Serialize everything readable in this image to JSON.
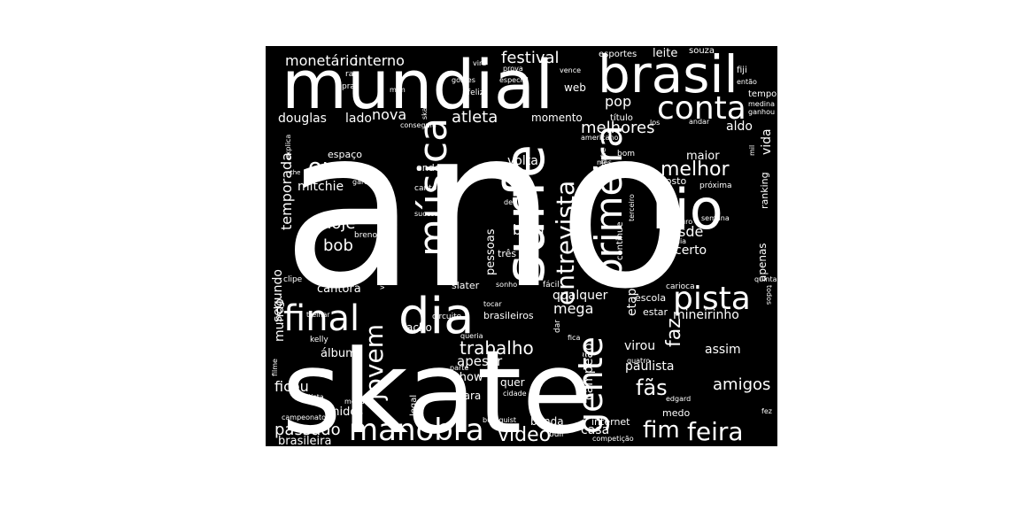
{
  "colors": {
    "page_background": "#ffffff",
    "cloud_background": "#000000",
    "text": "#ffffff"
  },
  "words": [
    "ano",
    "skate",
    "mundial",
    "brasil",
    "surfe",
    "rio",
    "dia",
    "música",
    "primeira",
    "final",
    "pista",
    "gente",
    "conta",
    "entrevista",
    "manobra",
    "jovem",
    "fim",
    "feira",
    "ouro",
    "fãs",
    "melhor",
    "amigos",
    "trabalho",
    "vídeo",
    "passado",
    "faz",
    "hoje",
    "desde",
    "bem",
    "mega",
    "bob",
    "festival",
    "monetário",
    "interno",
    "atleta",
    "nova",
    "pop",
    "melhores",
    "aldo",
    "douglas",
    "lado",
    "momento",
    "temporada",
    "segundo",
    "mitchie",
    "espaço",
    "onde",
    "vezes",
    "volta",
    "maior",
    "agosto",
    "certo",
    "apenas",
    "vida",
    "ranking",
    "mundo",
    "cantora",
    "slater",
    "pessoas",
    "três",
    "qualquer",
    "etapa",
    "mineirinho",
    "estar",
    "escola",
    "carioca",
    "acho",
    "álbum",
    "apesar",
    "show",
    "quer",
    "campeão",
    "paulista",
    "assim",
    "virou",
    "ficou",
    "unidos",
    "cara",
    "casa",
    "banda",
    "internet",
    "medo",
    "brasileira",
    "brasileiros",
    "continue",
    "terceiro",
    "próxima",
    "futuro",
    "semana",
    "família",
    "título",
    "bom",
    "americano",
    "esportes",
    "leite",
    "souza",
    "rap",
    "pra",
    "mim",
    "vira",
    "prova",
    "vence",
    "gomes",
    "especial",
    "feliz",
    "web",
    "skatista",
    "conseguiu",
    "explica",
    "the",
    "garoto",
    "cantor",
    "sucesso",
    "vai",
    "breno",
    "deu",
    "clipe",
    "você",
    "treinar",
    "kelly",
    "circuito",
    "tocar",
    "sonho",
    "fácil",
    "filme",
    "artista",
    "medalha",
    "legal",
    "campeonato",
    "burnquist",
    "bull",
    "competição",
    "edgard",
    "fez",
    "quatro",
    "parte",
    "queria",
    "cidade",
    "fica",
    "dar",
    "fiji",
    "então",
    "tempo",
    "medina",
    "ganhou",
    "andar",
    "los",
    "mil",
    "mês",
    "youtube",
    "quinta",
    "todos"
  ]
}
